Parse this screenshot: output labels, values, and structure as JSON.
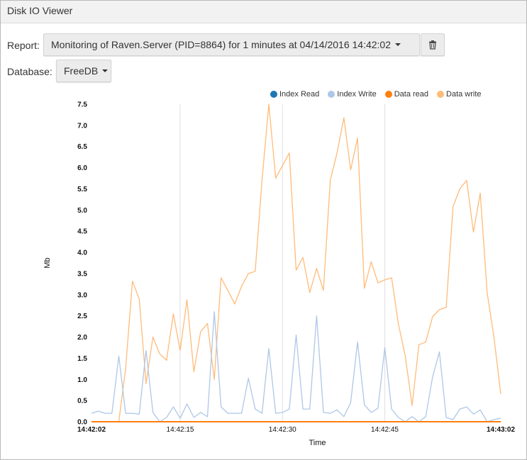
{
  "window": {
    "title": "Disk IO Viewer"
  },
  "controls": {
    "report_label": "Report:",
    "report_value": "Monitoring of Raven.Server (PID=8864) for 1 minutes at 04/14/2016 14:42:02",
    "database_label": "Database:",
    "database_value": "FreeDB",
    "delete_icon": "trash-icon"
  },
  "colors": {
    "index_read": "#1f77b4",
    "index_write": "#aec7e8",
    "data_read": "#ff7f0e",
    "data_write": "#ffbb78"
  },
  "chart_data": {
    "type": "line",
    "xlabel": "Time",
    "ylabel": "Mb",
    "ylim": [
      0,
      7.5
    ],
    "yticks": [
      "0.0",
      "0.5",
      "1.0",
      "1.5",
      "2.0",
      "2.5",
      "3.0",
      "3.5",
      "4.0",
      "4.5",
      "5.0",
      "5.5",
      "6.0",
      "6.5",
      "7.0",
      "7.5"
    ],
    "xlim": [
      "14:42:02",
      "14:43:02"
    ],
    "xticks": [
      "14:42:02",
      "14:42:15",
      "14:42:30",
      "14:42:45",
      "14:43:02"
    ],
    "grid": "vertical",
    "legend_position": "top-right",
    "x": [
      0,
      1,
      2,
      3,
      4,
      5,
      6,
      7,
      8,
      9,
      10,
      11,
      12,
      13,
      14,
      15,
      16,
      17,
      18,
      19,
      20,
      21,
      22,
      23,
      24,
      25,
      26,
      27,
      28,
      29,
      30,
      31,
      32,
      33,
      34,
      35,
      36,
      37,
      38,
      39,
      40,
      41,
      42,
      43,
      44,
      45,
      46,
      47,
      48,
      49,
      50,
      51,
      52,
      53,
      54,
      55,
      56,
      57,
      58,
      59,
      60
    ],
    "series": [
      {
        "name": "Index Read",
        "color": "#1f77b4",
        "values": [
          0,
          0,
          0,
          0,
          0,
          0,
          0,
          0,
          0,
          0,
          0,
          0,
          0,
          0,
          0,
          0,
          0,
          0,
          0,
          0,
          0,
          0,
          0,
          0,
          0,
          0,
          0,
          0,
          0,
          0,
          0,
          0,
          0,
          0,
          0,
          0,
          0,
          0,
          0,
          0,
          0,
          0,
          0,
          0,
          0,
          0,
          0,
          0,
          0,
          0,
          0,
          0,
          0,
          0,
          0,
          0,
          0,
          0,
          0,
          0,
          0
        ]
      },
      {
        "name": "Index Write",
        "color": "#aec7e8",
        "values": [
          0.2,
          0.25,
          0.2,
          0.2,
          1.55,
          0.2,
          0.2,
          0.18,
          1.68,
          0.22,
          0,
          0.1,
          0.35,
          0.08,
          0.42,
          0.1,
          0.22,
          0.12,
          2.6,
          0.35,
          0.2,
          0.2,
          0.2,
          1.03,
          0.3,
          0.2,
          1.73,
          0.2,
          0.22,
          0.3,
          2.05,
          0.3,
          0.3,
          2.5,
          0.22,
          0.2,
          0.28,
          0.12,
          0.45,
          1.88,
          0.4,
          0.22,
          0.32,
          1.75,
          0.3,
          0.1,
          0,
          0.12,
          0,
          0.12,
          1.05,
          1.65,
          0.1,
          0.05,
          0.3,
          0.35,
          0.18,
          0.28,
          0,
          0.05,
          0.08
        ]
      },
      {
        "name": "Data read",
        "color": "#ff7f0e",
        "values": [
          0,
          0,
          0,
          0,
          0,
          0,
          0,
          0,
          0,
          0,
          0,
          0,
          0,
          0,
          0,
          0,
          0,
          0,
          0,
          0,
          0,
          0,
          0,
          0,
          0,
          0,
          0,
          0,
          0,
          0,
          0,
          0,
          0,
          0,
          0,
          0,
          0,
          0,
          0,
          0,
          0,
          0,
          0,
          0,
          0,
          0,
          0,
          0,
          0,
          0,
          0,
          0,
          0,
          0,
          0,
          0,
          0,
          0,
          0,
          0,
          0
        ]
      },
      {
        "name": "Data write",
        "color": "#ffbb78",
        "values": [
          0,
          0,
          0,
          0,
          0,
          1.25,
          3.32,
          2.9,
          0.9,
          2.0,
          1.6,
          1.45,
          2.55,
          1.68,
          2.88,
          1.18,
          2.13,
          2.32,
          1.0,
          3.4,
          3.1,
          2.78,
          3.2,
          3.5,
          3.55,
          5.7,
          7.5,
          5.75,
          6.05,
          6.35,
          3.58,
          3.88,
          3.05,
          3.62,
          3.1,
          5.7,
          6.35,
          7.18,
          5.95,
          6.7,
          3.15,
          3.78,
          3.28,
          3.35,
          3.4,
          2.3,
          1.55,
          0.38,
          1.82,
          1.88,
          2.48,
          2.65,
          2.7,
          5.08,
          5.5,
          5.7,
          4.48,
          5.4,
          3.05,
          2.0,
          0.65
        ]
      }
    ]
  }
}
